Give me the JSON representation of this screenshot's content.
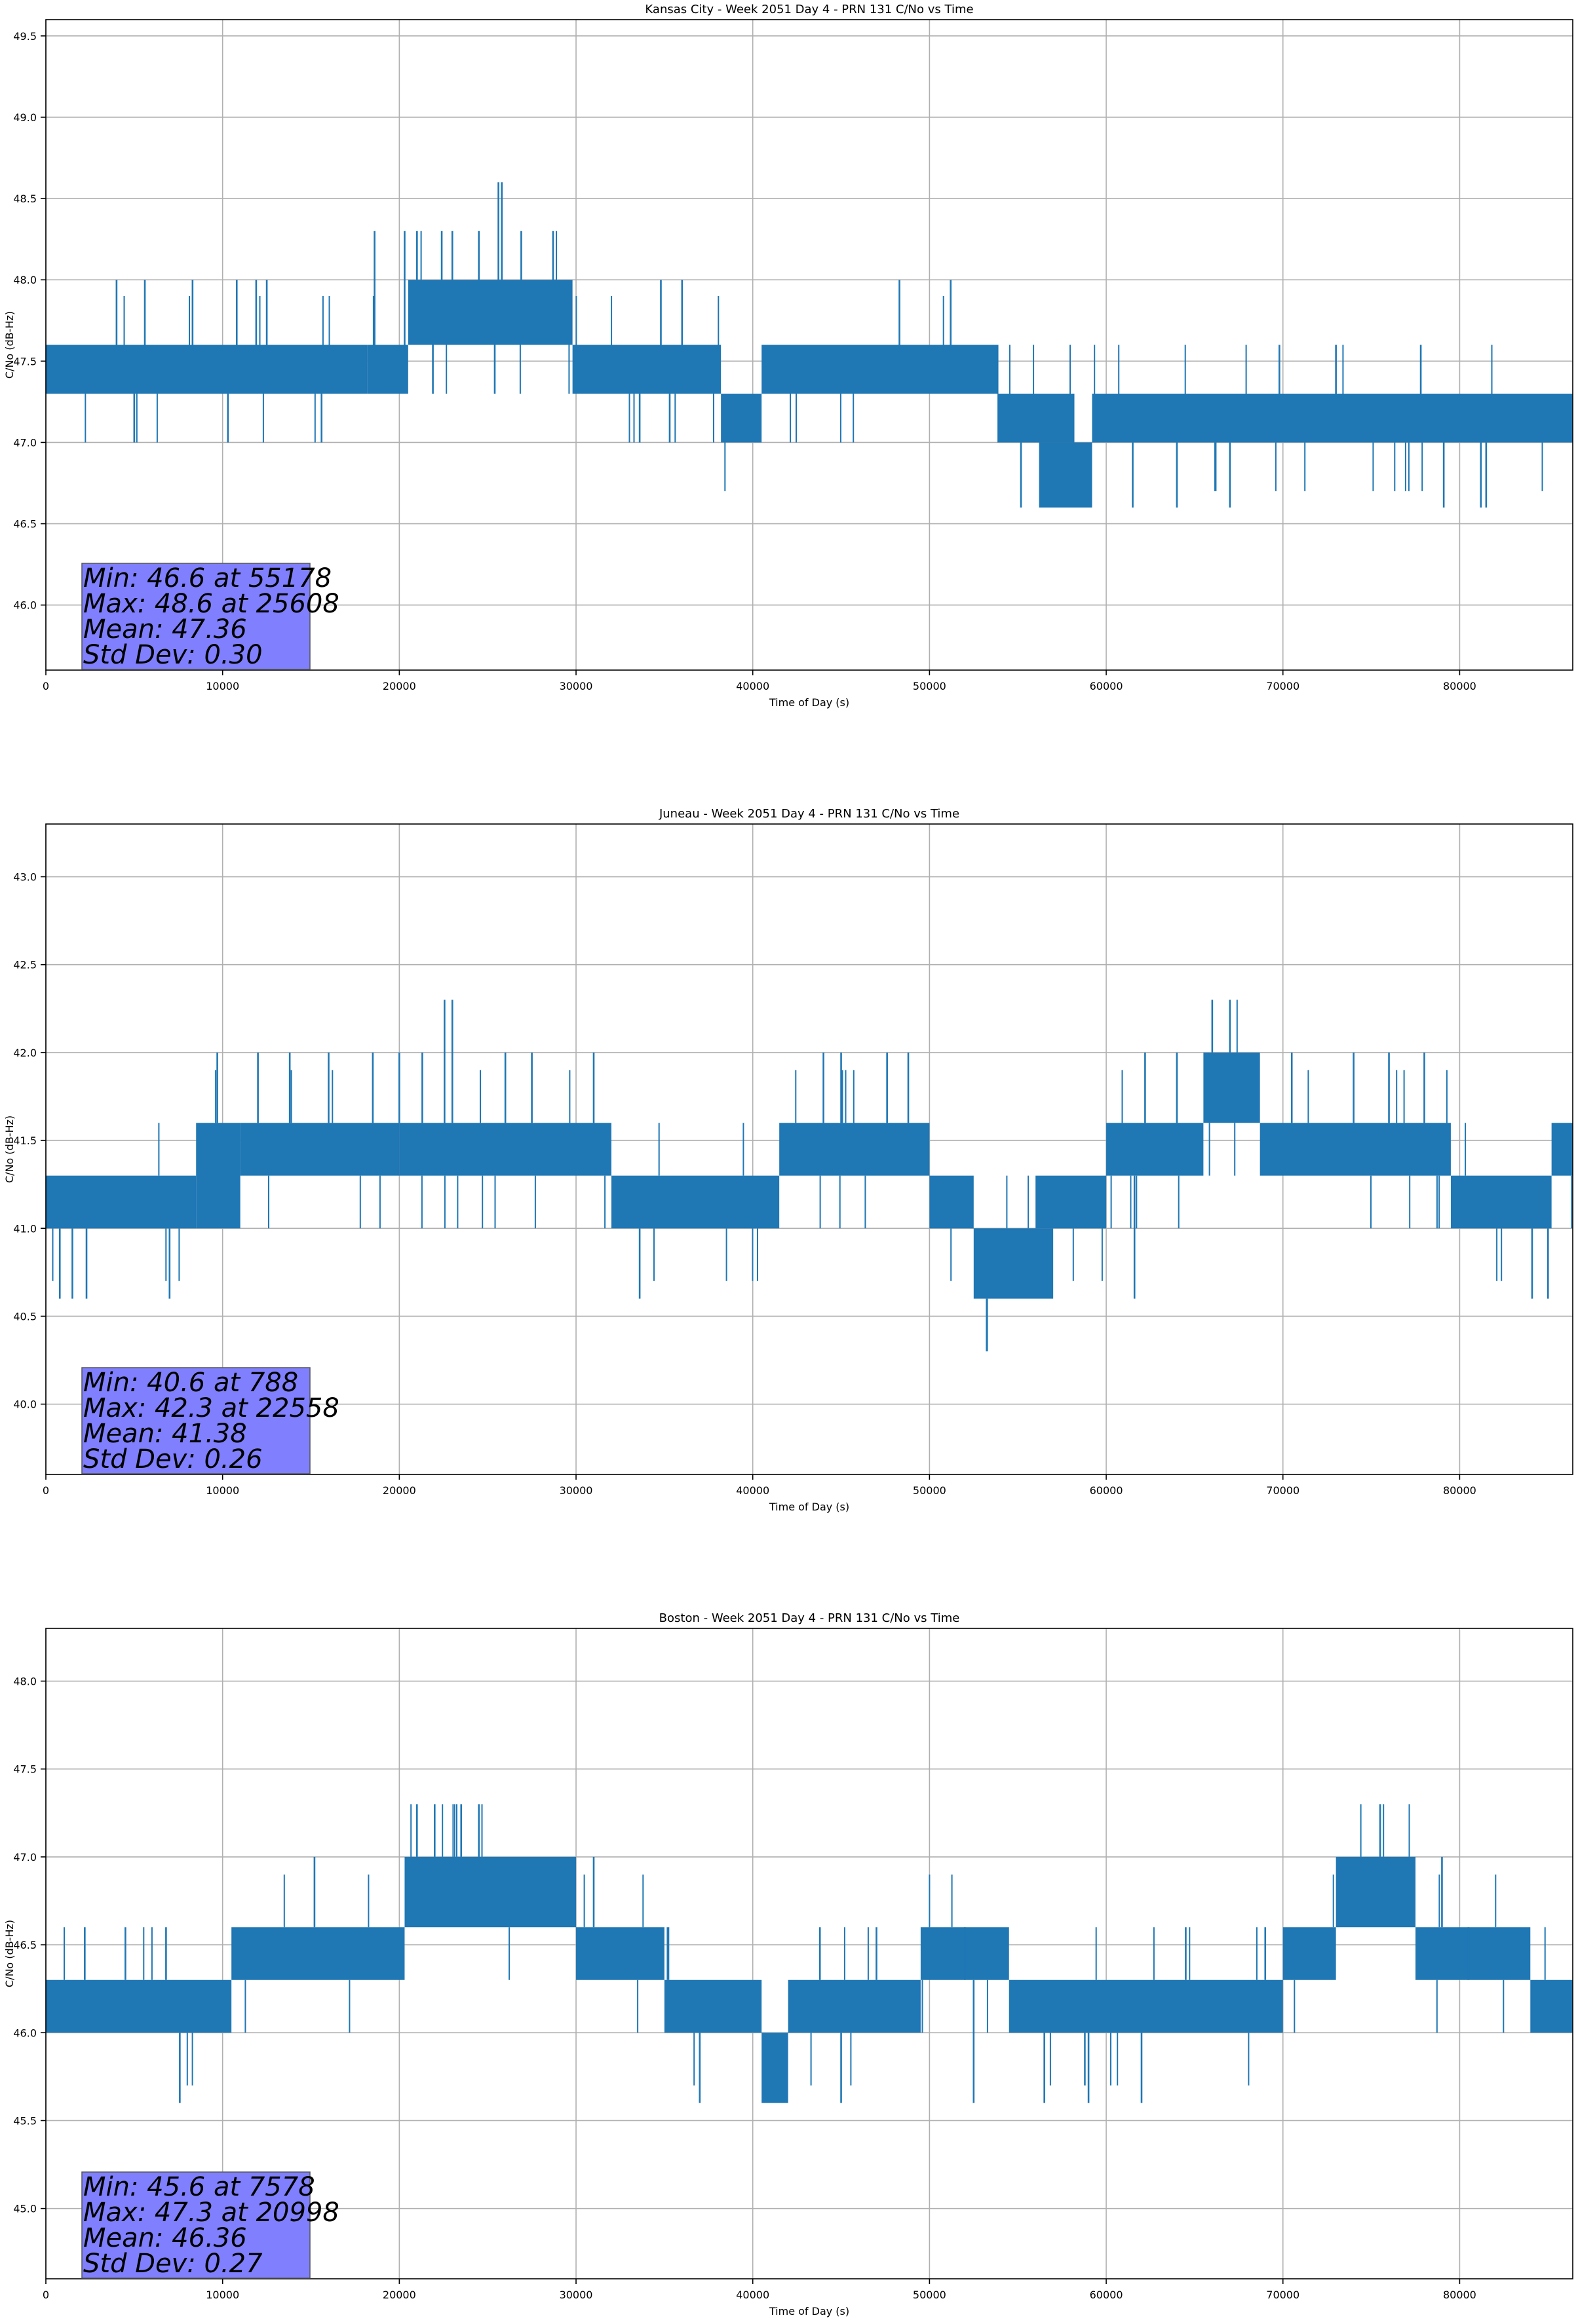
{
  "chart_data": [
    {
      "type": "line",
      "title": "Kansas City - Week 2051 Day 4 - PRN 131 C/No vs Time",
      "xlabel": "Time of Day (s)",
      "ylabel": "C/No (dB-Hz)",
      "xlim": [
        0,
        86400
      ],
      "ylim": [
        45.6,
        49.6
      ],
      "xticks": [
        0,
        10000,
        20000,
        30000,
        40000,
        50000,
        60000,
        70000,
        80000
      ],
      "yticks": [
        46.0,
        46.5,
        47.0,
        47.5,
        48.0,
        48.5,
        49.0,
        49.5
      ],
      "grid": true,
      "color": "#1f77b4",
      "stats": [
        "Min: 46.6 at 55178",
        "Max: 48.6 at 25608",
        "Mean: 47.36",
        "Std Dev: 0.30"
      ],
      "stats_box_color": "#8080ff",
      "series": [
        {
          "bands": [
            {
              "x0": 0,
              "x1": 18200,
              "y0": 47.3,
              "y1": 47.6
            },
            {
              "x0": 18200,
              "x1": 20500,
              "y0": 47.3,
              "y1": 47.6
            },
            {
              "x0": 20500,
              "x1": 29800,
              "y0": 47.6,
              "y1": 48.0
            },
            {
              "x0": 29800,
              "x1": 38200,
              "y0": 47.3,
              "y1": 47.6
            },
            {
              "x0": 38200,
              "x1": 40500,
              "y0": 47.0,
              "y1": 47.3
            },
            {
              "x0": 40500,
              "x1": 53900,
              "y0": 47.3,
              "y1": 47.6
            },
            {
              "x0": 53900,
              "x1": 58200,
              "y0": 47.0,
              "y1": 47.3
            },
            {
              "x0": 56200,
              "x1": 59200,
              "y0": 46.6,
              "y1": 47.0
            },
            {
              "x0": 59200,
              "x1": 86400,
              "y0": 47.0,
              "y1": 47.3
            }
          ],
          "spikes": [
            {
              "x": 4000,
              "y": 48.0
            },
            {
              "x": 5600,
              "y": 48.0
            },
            {
              "x": 8300,
              "y": 48.0
            },
            {
              "x": 10800,
              "y": 48.0
            },
            {
              "x": 11900,
              "y": 48.0
            },
            {
              "x": 12500,
              "y": 48.0
            },
            {
              "x": 18600,
              "y": 48.3
            },
            {
              "x": 20300,
              "y": 48.3
            },
            {
              "x": 21000,
              "y": 48.3
            },
            {
              "x": 22400,
              "y": 48.3
            },
            {
              "x": 23000,
              "y": 48.3
            },
            {
              "x": 24500,
              "y": 48.3
            },
            {
              "x": 25608,
              "y": 48.6
            },
            {
              "x": 25800,
              "y": 48.6
            },
            {
              "x": 26900,
              "y": 48.3
            },
            {
              "x": 28700,
              "y": 48.3
            },
            {
              "x": 34800,
              "y": 48.0
            },
            {
              "x": 36000,
              "y": 48.0
            },
            {
              "x": 48300,
              "y": 48.0
            },
            {
              "x": 51200,
              "y": 48.0
            },
            {
              "x": 69800,
              "y": 47.6
            },
            {
              "x": 73000,
              "y": 47.6
            },
            {
              "x": 77800,
              "y": 47.6
            },
            {
              "x": 5000,
              "y": 47.0
            },
            {
              "x": 10300,
              "y": 47.0
            },
            {
              "x": 15600,
              "y": 47.0
            },
            {
              "x": 21900,
              "y": 47.3
            },
            {
              "x": 25400,
              "y": 47.3
            },
            {
              "x": 33600,
              "y": 47.0
            },
            {
              "x": 35300,
              "y": 47.0
            },
            {
              "x": 55178,
              "y": 46.6
            },
            {
              "x": 61500,
              "y": 46.6
            },
            {
              "x": 64000,
              "y": 46.6
            },
            {
              "x": 67000,
              "y": 46.6
            },
            {
              "x": 79100,
              "y": 46.6
            },
            {
              "x": 81200,
              "y": 46.6
            },
            {
              "x": 81500,
              "y": 46.6
            }
          ]
        }
      ]
    },
    {
      "type": "line",
      "title": "Juneau - Week 2051 Day 4 - PRN 131 C/No vs Time",
      "xlabel": "Time of Day (s)",
      "ylabel": "C/No (dB-Hz)",
      "xlim": [
        0,
        86400
      ],
      "ylim": [
        39.6,
        43.3
      ],
      "xticks": [
        0,
        10000,
        20000,
        30000,
        40000,
        50000,
        60000,
        70000,
        80000
      ],
      "yticks": [
        40.0,
        40.5,
        41.0,
        41.5,
        42.0,
        42.5,
        43.0
      ],
      "grid": true,
      "color": "#1f77b4",
      "stats": [
        "Min: 40.6 at 788",
        "Max: 42.3 at 22558",
        "Mean: 41.38",
        "Std Dev: 0.26"
      ],
      "stats_box_color": "#8080ff",
      "series": [
        {
          "bands": [
            {
              "x0": 0,
              "x1": 8500,
              "y0": 41.0,
              "y1": 41.3
            },
            {
              "x0": 8500,
              "x1": 11000,
              "y0": 41.0,
              "y1": 41.6
            },
            {
              "x0": 11000,
              "x1": 20000,
              "y0": 41.3,
              "y1": 41.6
            },
            {
              "x0": 20000,
              "x1": 32000,
              "y0": 41.3,
              "y1": 41.6
            },
            {
              "x0": 32000,
              "x1": 41500,
              "y0": 41.0,
              "y1": 41.3
            },
            {
              "x0": 41500,
              "x1": 50000,
              "y0": 41.3,
              "y1": 41.6
            },
            {
              "x0": 50000,
              "x1": 52500,
              "y0": 41.0,
              "y1": 41.3
            },
            {
              "x0": 52500,
              "x1": 57000,
              "y0": 40.6,
              "y1": 41.0
            },
            {
              "x0": 56000,
              "x1": 60000,
              "y0": 41.0,
              "y1": 41.3
            },
            {
              "x0": 60000,
              "x1": 65500,
              "y0": 41.3,
              "y1": 41.6
            },
            {
              "x0": 65500,
              "x1": 68700,
              "y0": 41.6,
              "y1": 42.0
            },
            {
              "x0": 68700,
              "x1": 79500,
              "y0": 41.3,
              "y1": 41.6
            },
            {
              "x0": 79500,
              "x1": 85200,
              "y0": 41.0,
              "y1": 41.3
            },
            {
              "x0": 85200,
              "x1": 86400,
              "y0": 41.3,
              "y1": 41.6
            }
          ],
          "spikes": [
            {
              "x": 788,
              "y": 40.6
            },
            {
              "x": 1500,
              "y": 40.6
            },
            {
              "x": 2300,
              "y": 40.6
            },
            {
              "x": 7000,
              "y": 40.6
            },
            {
              "x": 33600,
              "y": 40.6
            },
            {
              "x": 61600,
              "y": 40.6
            },
            {
              "x": 84100,
              "y": 40.6
            },
            {
              "x": 85000,
              "y": 40.6
            },
            {
              "x": 9700,
              "y": 42.0
            },
            {
              "x": 12000,
              "y": 42.0
            },
            {
              "x": 13800,
              "y": 42.0
            },
            {
              "x": 16000,
              "y": 42.0
            },
            {
              "x": 18500,
              "y": 42.0
            },
            {
              "x": 20000,
              "y": 42.0
            },
            {
              "x": 21300,
              "y": 42.0
            },
            {
              "x": 22558,
              "y": 42.3
            },
            {
              "x": 23000,
              "y": 42.3
            },
            {
              "x": 26000,
              "y": 42.0
            },
            {
              "x": 27500,
              "y": 42.0
            },
            {
              "x": 31000,
              "y": 42.0
            },
            {
              "x": 44000,
              "y": 42.0
            },
            {
              "x": 45000,
              "y": 42.0
            },
            {
              "x": 47600,
              "y": 42.0
            },
            {
              "x": 48800,
              "y": 42.0
            },
            {
              "x": 62200,
              "y": 42.0
            },
            {
              "x": 64000,
              "y": 42.0
            },
            {
              "x": 66000,
              "y": 42.3
            },
            {
              "x": 67000,
              "y": 42.3
            },
            {
              "x": 70500,
              "y": 42.0
            },
            {
              "x": 74000,
              "y": 42.0
            },
            {
              "x": 76000,
              "y": 42.0
            },
            {
              "x": 78000,
              "y": 42.0
            }
          ]
        }
      ]
    },
    {
      "type": "line",
      "title": "Boston - Week 2051 Day 4 - PRN 131 C/No vs Time",
      "xlabel": "Time of Day (s)",
      "ylabel": "C/No (dB-Hz)",
      "xlim": [
        0,
        86400
      ],
      "ylim": [
        44.6,
        48.3
      ],
      "xticks": [
        0,
        10000,
        20000,
        30000,
        40000,
        50000,
        60000,
        70000,
        80000
      ],
      "yticks": [
        45.0,
        45.5,
        46.0,
        46.5,
        47.0,
        47.5,
        48.0
      ],
      "grid": true,
      "color": "#1f77b4",
      "stats": [
        "Min: 45.6 at 7578",
        "Max: 47.3 at 20998",
        "Mean: 46.36",
        "Std Dev: 0.27"
      ],
      "stats_box_color": "#8080ff",
      "series": [
        {
          "bands": [
            {
              "x0": 0,
              "x1": 10500,
              "y0": 46.0,
              "y1": 46.3
            },
            {
              "x0": 10500,
              "x1": 20300,
              "y0": 46.3,
              "y1": 46.6
            },
            {
              "x0": 20300,
              "x1": 30000,
              "y0": 46.6,
              "y1": 47.0
            },
            {
              "x0": 30000,
              "x1": 35000,
              "y0": 46.3,
              "y1": 46.6
            },
            {
              "x0": 35000,
              "x1": 40500,
              "y0": 46.0,
              "y1": 46.3
            },
            {
              "x0": 40500,
              "x1": 42000,
              "y0": 45.6,
              "y1": 46.0
            },
            {
              "x0": 42000,
              "x1": 49500,
              "y0": 46.0,
              "y1": 46.3
            },
            {
              "x0": 49500,
              "x1": 54500,
              "y0": 46.3,
              "y1": 46.6
            },
            {
              "x0": 54500,
              "x1": 70000,
              "y0": 46.0,
              "y1": 46.3
            },
            {
              "x0": 70000,
              "x1": 73000,
              "y0": 46.3,
              "y1": 46.6
            },
            {
              "x0": 73000,
              "x1": 77500,
              "y0": 46.6,
              "y1": 47.0
            },
            {
              "x0": 77500,
              "x1": 84000,
              "y0": 46.3,
              "y1": 46.6
            },
            {
              "x0": 84000,
              "x1": 86400,
              "y0": 46.0,
              "y1": 46.3
            }
          ],
          "spikes": [
            {
              "x": 7578,
              "y": 45.6
            },
            {
              "x": 37000,
              "y": 45.6
            },
            {
              "x": 45000,
              "y": 45.6
            },
            {
              "x": 52500,
              "y": 45.6
            },
            {
              "x": 56500,
              "y": 45.6
            },
            {
              "x": 59000,
              "y": 45.6
            },
            {
              "x": 62000,
              "y": 45.6
            },
            {
              "x": 2200,
              "y": 46.6
            },
            {
              "x": 4500,
              "y": 46.6
            },
            {
              "x": 6800,
              "y": 46.6
            },
            {
              "x": 15200,
              "y": 47.0
            },
            {
              "x": 20998,
              "y": 47.3
            },
            {
              "x": 22000,
              "y": 47.3
            },
            {
              "x": 23500,
              "y": 47.3
            },
            {
              "x": 24500,
              "y": 47.3
            },
            {
              "x": 31000,
              "y": 47.0
            },
            {
              "x": 43800,
              "y": 46.6
            },
            {
              "x": 47000,
              "y": 46.6
            },
            {
              "x": 52000,
              "y": 46.6
            },
            {
              "x": 64500,
              "y": 46.6
            },
            {
              "x": 69000,
              "y": 46.6
            },
            {
              "x": 75500,
              "y": 47.3
            },
            {
              "x": 79000,
              "y": 47.0
            },
            {
              "x": 80500,
              "y": 46.6
            }
          ]
        }
      ]
    }
  ]
}
